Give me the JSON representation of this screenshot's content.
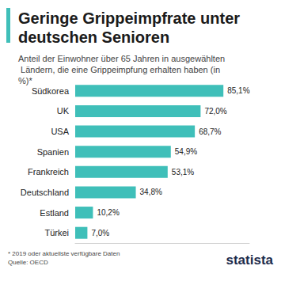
{
  "chart_data": {
    "type": "bar",
    "orientation": "horizontal",
    "title": "Geringe Grippeimpfrate unter deutschen Senioren",
    "subtitle": "Anteil der Einwohner über 65 Jahren in ausgewählten Ländern, die eine Grippeimpfung erhalten haben (in %)*",
    "categories": [
      "Südkorea",
      "UK",
      "USA",
      "Spanien",
      "Frankreich",
      "Deutschland",
      "Estland",
      "Türkei"
    ],
    "values": [
      85.1,
      72.0,
      68.7,
      54.9,
      53.1,
      34.8,
      10.2,
      7.0
    ],
    "value_labels": [
      "85,1%",
      "72,0%",
      "68,7%",
      "54,9%",
      "53,1%",
      "34,8%",
      "10,2%",
      "7,0%"
    ],
    "color": "#3fbfb9",
    "xlim": [
      0,
      100
    ],
    "grid": false,
    "data_labels": true,
    "tick_labels": "y",
    "notes": [
      "* 2019 oder aktuellste verfügbare Daten",
      "Quelle: OECD"
    ],
    "logo": "statista"
  }
}
